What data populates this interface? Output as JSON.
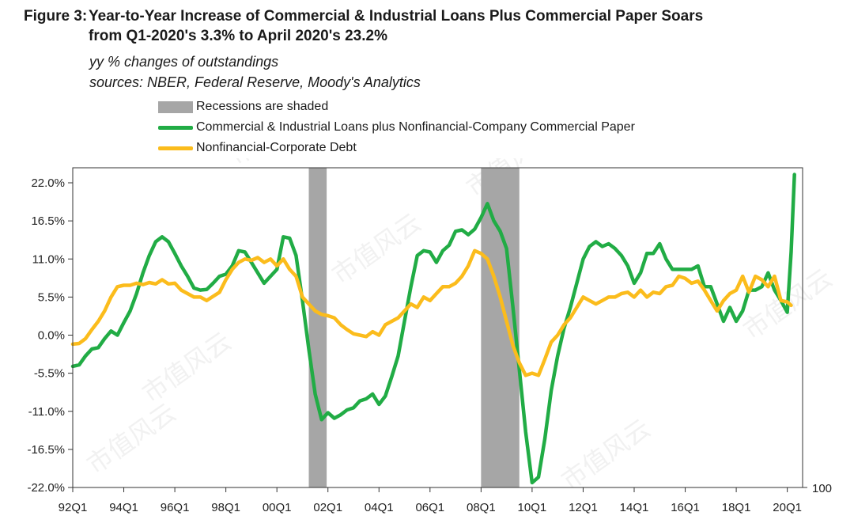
{
  "title": {
    "label": "Figure 3:",
    "line1": "Year-to-Year Increase of Commercial & Industrial Loans  Plus Commercial Paper Soars",
    "line2": "from Q1-2020's  3.3% to April 2020's  23.2%"
  },
  "subtitle": "yy % changes of outstandings",
  "sources": "sources: NBER, Federal Reserve, Moody's Analytics",
  "watermark": "市值风云",
  "legend": {
    "recession": "Recessions are shaded",
    "series1": "Commercial & Industrial Loans plus Nonfinancial-Company Commercial Paper",
    "series2": "Nonfinancial-Corporate Debt"
  },
  "right_axis_label": "100",
  "chart_data": {
    "type": "line",
    "x_unit": "quarter (e.g. 1992.25 = 92Q2)",
    "xlim": [
      1992.0,
      2020.6
    ],
    "ylim": [
      -22.0,
      22.0
    ],
    "y_ticks": [
      "22.0%",
      "16.5%",
      "11.0%",
      "5.5%",
      "0.0%",
      "-5.5%",
      "-11.0%",
      "-16.5%",
      "-22.0%"
    ],
    "y_tick_values": [
      22.0,
      16.5,
      11.0,
      5.5,
      0.0,
      -5.5,
      -11.0,
      -16.5,
      -22.0
    ],
    "x_ticks": [
      "92Q1",
      "94Q1",
      "96Q1",
      "98Q1",
      "00Q1",
      "02Q1",
      "04Q1",
      "06Q1",
      "08Q1",
      "10Q1",
      "12Q1",
      "14Q1",
      "16Q1",
      "18Q1",
      "20Q1"
    ],
    "x_tick_values": [
      1992,
      1994,
      1996,
      1998,
      2000,
      2002,
      2004,
      2006,
      2008,
      2010,
      2012,
      2014,
      2016,
      2018,
      2020
    ],
    "recessions": [
      [
        2001.25,
        2001.95
      ],
      [
        2008.0,
        2009.5
      ]
    ],
    "grid": false,
    "legend_position": "top",
    "colors": {
      "series1": "#21ac45",
      "series2": "#fbbc1c",
      "recession": "#a6a6a6"
    },
    "series": [
      {
        "name": "Commercial & Industrial Loans plus Nonfinancial-Company Commercial Paper",
        "color": "#21ac45",
        "points": [
          [
            1992.0,
            -4.5
          ],
          [
            1992.25,
            -4.3
          ],
          [
            1992.5,
            -3.0
          ],
          [
            1992.75,
            -2.0
          ],
          [
            1993.0,
            -1.8
          ],
          [
            1993.25,
            -0.5
          ],
          [
            1993.5,
            0.6
          ],
          [
            1993.75,
            0.0
          ],
          [
            1994.0,
            1.8
          ],
          [
            1994.25,
            3.5
          ],
          [
            1994.5,
            6.0
          ],
          [
            1994.75,
            9.0
          ],
          [
            1995.0,
            11.5
          ],
          [
            1995.25,
            13.5
          ],
          [
            1995.5,
            14.2
          ],
          [
            1995.75,
            13.5
          ],
          [
            1996.0,
            11.8
          ],
          [
            1996.25,
            10.0
          ],
          [
            1996.5,
            8.5
          ],
          [
            1996.75,
            6.8
          ],
          [
            1997.0,
            6.5
          ],
          [
            1997.25,
            6.6
          ],
          [
            1997.5,
            7.5
          ],
          [
            1997.75,
            8.5
          ],
          [
            1998.0,
            8.8
          ],
          [
            1998.25,
            10.0
          ],
          [
            1998.5,
            12.2
          ],
          [
            1998.75,
            12.0
          ],
          [
            1999.0,
            10.5
          ],
          [
            1999.25,
            9.0
          ],
          [
            1999.5,
            7.5
          ],
          [
            1999.75,
            8.5
          ],
          [
            2000.0,
            9.5
          ],
          [
            2000.25,
            14.2
          ],
          [
            2000.5,
            14.0
          ],
          [
            2000.75,
            11.5
          ],
          [
            2001.0,
            5.0
          ],
          [
            2001.25,
            -2.0
          ],
          [
            2001.5,
            -8.5
          ],
          [
            2001.75,
            -12.2
          ],
          [
            2002.0,
            -11.2
          ],
          [
            2002.25,
            -12.0
          ],
          [
            2002.5,
            -11.5
          ],
          [
            2002.75,
            -10.8
          ],
          [
            2003.0,
            -10.5
          ],
          [
            2003.25,
            -9.5
          ],
          [
            2003.5,
            -9.2
          ],
          [
            2003.75,
            -8.5
          ],
          [
            2004.0,
            -10.0
          ],
          [
            2004.25,
            -8.8
          ],
          [
            2004.5,
            -6.0
          ],
          [
            2004.75,
            -3.0
          ],
          [
            2005.0,
            2.0
          ],
          [
            2005.25,
            7.0
          ],
          [
            2005.5,
            11.5
          ],
          [
            2005.75,
            12.2
          ],
          [
            2006.0,
            12.0
          ],
          [
            2006.25,
            10.5
          ],
          [
            2006.5,
            12.2
          ],
          [
            2006.75,
            13.0
          ],
          [
            2007.0,
            15.0
          ],
          [
            2007.25,
            15.2
          ],
          [
            2007.5,
            14.5
          ],
          [
            2007.75,
            15.3
          ],
          [
            2008.0,
            17.0
          ],
          [
            2008.25,
            19.0
          ],
          [
            2008.5,
            16.5
          ],
          [
            2008.75,
            15.0
          ],
          [
            2009.0,
            12.5
          ],
          [
            2009.25,
            4.0
          ],
          [
            2009.5,
            -5.0
          ],
          [
            2009.75,
            -14.0
          ],
          [
            2010.0,
            -21.3
          ],
          [
            2010.25,
            -20.5
          ],
          [
            2010.5,
            -15.0
          ],
          [
            2010.75,
            -8.0
          ],
          [
            2011.0,
            -3.0
          ],
          [
            2011.25,
            1.0
          ],
          [
            2011.5,
            4.0
          ],
          [
            2011.75,
            7.5
          ],
          [
            2012.0,
            11.0
          ],
          [
            2012.25,
            12.8
          ],
          [
            2012.5,
            13.5
          ],
          [
            2012.75,
            12.8
          ],
          [
            2013.0,
            13.2
          ],
          [
            2013.25,
            12.5
          ],
          [
            2013.5,
            11.5
          ],
          [
            2013.75,
            10.0
          ],
          [
            2014.0,
            7.5
          ],
          [
            2014.25,
            9.0
          ],
          [
            2014.5,
            11.8
          ],
          [
            2014.75,
            11.8
          ],
          [
            2015.0,
            13.2
          ],
          [
            2015.25,
            11.0
          ],
          [
            2015.5,
            9.5
          ],
          [
            2015.75,
            9.5
          ],
          [
            2016.0,
            9.5
          ],
          [
            2016.25,
            9.5
          ],
          [
            2016.5,
            10.0
          ],
          [
            2016.75,
            7.0
          ],
          [
            2017.0,
            7.0
          ],
          [
            2017.25,
            4.5
          ],
          [
            2017.5,
            2.0
          ],
          [
            2017.75,
            4.0
          ],
          [
            2018.0,
            2.0
          ],
          [
            2018.25,
            3.5
          ],
          [
            2018.5,
            6.5
          ],
          [
            2018.75,
            6.5
          ],
          [
            2019.0,
            7.0
          ],
          [
            2019.25,
            9.0
          ],
          [
            2019.5,
            6.5
          ],
          [
            2019.75,
            5.0
          ],
          [
            2020.0,
            3.3
          ],
          [
            2020.15,
            12.0
          ],
          [
            2020.28,
            23.2
          ]
        ]
      },
      {
        "name": "Nonfinancial-Corporate Debt",
        "color": "#fbbc1c",
        "points": [
          [
            1992.0,
            -1.3
          ],
          [
            1992.25,
            -1.2
          ],
          [
            1992.5,
            -0.5
          ],
          [
            1992.75,
            0.8
          ],
          [
            1993.0,
            2.0
          ],
          [
            1993.25,
            3.5
          ],
          [
            1993.5,
            5.5
          ],
          [
            1993.75,
            7.0
          ],
          [
            1994.0,
            7.2
          ],
          [
            1994.25,
            7.2
          ],
          [
            1994.5,
            7.5
          ],
          [
            1994.75,
            7.3
          ],
          [
            1995.0,
            7.6
          ],
          [
            1995.25,
            7.4
          ],
          [
            1995.5,
            8.0
          ],
          [
            1995.75,
            7.4
          ],
          [
            1996.0,
            7.5
          ],
          [
            1996.25,
            6.5
          ],
          [
            1996.5,
            6.0
          ],
          [
            1996.75,
            5.5
          ],
          [
            1997.0,
            5.5
          ],
          [
            1997.25,
            5.0
          ],
          [
            1997.5,
            5.6
          ],
          [
            1997.75,
            6.2
          ],
          [
            1998.0,
            8.0
          ],
          [
            1998.25,
            9.5
          ],
          [
            1998.5,
            10.5
          ],
          [
            1998.75,
            11.0
          ],
          [
            1999.0,
            10.8
          ],
          [
            1999.25,
            11.2
          ],
          [
            1999.5,
            10.5
          ],
          [
            1999.75,
            11.0
          ],
          [
            2000.0,
            10.0
          ],
          [
            2000.25,
            11.0
          ],
          [
            2000.5,
            9.5
          ],
          [
            2000.75,
            8.5
          ],
          [
            2001.0,
            5.5
          ],
          [
            2001.25,
            4.5
          ],
          [
            2001.5,
            3.5
          ],
          [
            2001.75,
            3.0
          ],
          [
            2002.0,
            2.8
          ],
          [
            2002.25,
            2.5
          ],
          [
            2002.5,
            1.5
          ],
          [
            2002.75,
            0.8
          ],
          [
            2003.0,
            0.2
          ],
          [
            2003.25,
            0.0
          ],
          [
            2003.5,
            -0.2
          ],
          [
            2003.75,
            0.5
          ],
          [
            2004.0,
            0.0
          ],
          [
            2004.25,
            1.5
          ],
          [
            2004.5,
            2.0
          ],
          [
            2004.75,
            2.5
          ],
          [
            2005.0,
            3.5
          ],
          [
            2005.25,
            4.5
          ],
          [
            2005.5,
            4.0
          ],
          [
            2005.75,
            5.5
          ],
          [
            2006.0,
            5.0
          ],
          [
            2006.25,
            6.0
          ],
          [
            2006.5,
            7.0
          ],
          [
            2006.75,
            7.0
          ],
          [
            2007.0,
            7.5
          ],
          [
            2007.25,
            8.5
          ],
          [
            2007.5,
            10.0
          ],
          [
            2007.75,
            12.2
          ],
          [
            2008.0,
            11.8
          ],
          [
            2008.25,
            11.0
          ],
          [
            2008.5,
            8.5
          ],
          [
            2008.75,
            5.5
          ],
          [
            2009.0,
            2.0
          ],
          [
            2009.25,
            -1.5
          ],
          [
            2009.5,
            -4.0
          ],
          [
            2009.75,
            -5.8
          ],
          [
            2010.0,
            -5.5
          ],
          [
            2010.25,
            -5.8
          ],
          [
            2010.5,
            -3.5
          ],
          [
            2010.75,
            -1.0
          ],
          [
            2011.0,
            0.0
          ],
          [
            2011.25,
            1.5
          ],
          [
            2011.5,
            2.5
          ],
          [
            2011.75,
            4.0
          ],
          [
            2012.0,
            5.5
          ],
          [
            2012.25,
            5.0
          ],
          [
            2012.5,
            4.5
          ],
          [
            2012.75,
            5.0
          ],
          [
            2013.0,
            5.5
          ],
          [
            2013.25,
            5.5
          ],
          [
            2013.5,
            6.0
          ],
          [
            2013.75,
            6.2
          ],
          [
            2014.0,
            5.5
          ],
          [
            2014.25,
            6.5
          ],
          [
            2014.5,
            5.5
          ],
          [
            2014.75,
            6.2
          ],
          [
            2015.0,
            6.0
          ],
          [
            2015.25,
            7.0
          ],
          [
            2015.5,
            7.2
          ],
          [
            2015.75,
            8.5
          ],
          [
            2016.0,
            8.2
          ],
          [
            2016.25,
            7.5
          ],
          [
            2016.5,
            7.8
          ],
          [
            2016.75,
            6.5
          ],
          [
            2017.0,
            5.0
          ],
          [
            2017.25,
            3.5
          ],
          [
            2017.5,
            5.0
          ],
          [
            2017.75,
            6.0
          ],
          [
            2018.0,
            6.5
          ],
          [
            2018.25,
            8.5
          ],
          [
            2018.5,
            6.2
          ],
          [
            2018.75,
            8.5
          ],
          [
            2019.0,
            8.0
          ],
          [
            2019.25,
            7.0
          ],
          [
            2019.5,
            8.5
          ],
          [
            2019.75,
            5.0
          ],
          [
            2020.0,
            4.8
          ],
          [
            2020.15,
            4.3
          ]
        ]
      }
    ]
  }
}
